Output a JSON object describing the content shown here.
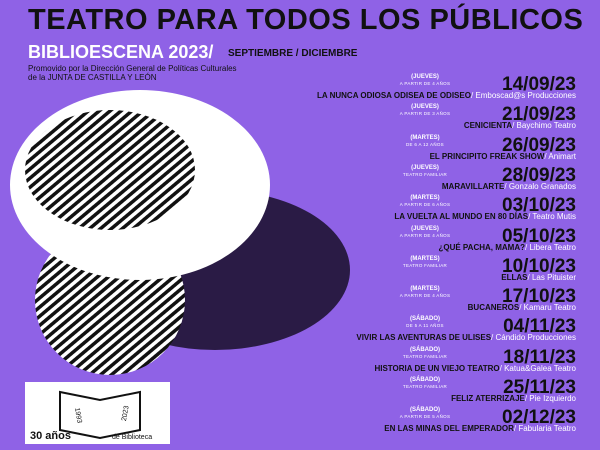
{
  "header": {
    "title": "TEATRO PARA TODOS LOS PÚBLICOS",
    "series": "BIBLIOESCENA 2023/",
    "period": "SEPTIEMBRE / DICIEMBRE",
    "promoter": [
      "Promovido por la Dirección General de Políticas Culturales",
      "de la JUNTA DE CASTILLA Y LEÓN"
    ]
  },
  "events": [
    {
      "day": "(JUEVES)",
      "audience": "A PARTIR DE 4 AÑOS",
      "date": "14/09/23",
      "title": "LA NUNCA ODIOSA ODISEA DE ODISEO",
      "company": "/ Emboscad@s Producciones"
    },
    {
      "day": "(JUEVES)",
      "audience": "A PARTIR DE 3 AÑOS",
      "date": "21/09/23",
      "title": "CENICIENTA",
      "company": "/ Baychimo Teatro"
    },
    {
      "day": "(MARTES)",
      "audience": "DE 6 A 12 AÑOS",
      "date": "26/09/23",
      "title": "EL PRINCIPITO FREAK SHOW",
      "company": "/ Animart"
    },
    {
      "day": "(JUEVES)",
      "audience": "TEATRO FAMILIAR",
      "date": "28/09/23",
      "title": "MARAVILLARTE",
      "company": "/ Gonzalo Granados"
    },
    {
      "day": "(MARTES)",
      "audience": "A PARTIR DE 6 AÑOS",
      "date": "03/10/23",
      "title": "LA VUELTA AL MUNDO EN 80 DÍAS",
      "company": "/ Teatro Mutis"
    },
    {
      "day": "(JUEVES)",
      "audience": "A PARTIR DE 4 AÑOS",
      "date": "05/10/23",
      "title": "¿QUÉ PACHA, MAMA?",
      "company": "/ Libera Teatro"
    },
    {
      "day": "(MARTES)",
      "audience": "TEATRO FAMILIAR",
      "date": "10/10/23",
      "title": "ELLAS",
      "company": "/ Las Pituister"
    },
    {
      "day": "(MARTES)",
      "audience": "A PARTIR DE 4 AÑOS",
      "date": "17/10/23",
      "title": "BUCANEROS",
      "company": "/ Kamaru Teatro"
    },
    {
      "day": "(SÁBADO)",
      "audience": "DE 5 A 11 AÑOS",
      "date": "04/11/23",
      "title": "VIVIR LAS AVENTURAS DE ULISES",
      "company": "/ Cándido Producciones"
    },
    {
      "day": "(SÁBADO)",
      "audience": "TEATRO FAMILIAR",
      "date": "18/11/23",
      "title": "HISTORIA DE UN VIEJO TEATRO",
      "company": "/ Katua&Galea Teatro"
    },
    {
      "day": "(SÁBADO)",
      "audience": "TEATRO FAMILIAR",
      "date": "25/11/23",
      "title": "FELIZ ATERRIZAJE",
      "company": "/ Pie Izquierdo"
    },
    {
      "day": "(SÁBADO)",
      "audience": "A PARTIR DE 5 AÑOS",
      "date": "02/12/23",
      "title": "EN LAS MINAS DEL EMPERADOR",
      "company": "/ Fabularia Teatro"
    }
  ],
  "logo": {
    "years": "30 años",
    "label": "de Biblioteca",
    "start": "1993",
    "end": "2023"
  }
}
